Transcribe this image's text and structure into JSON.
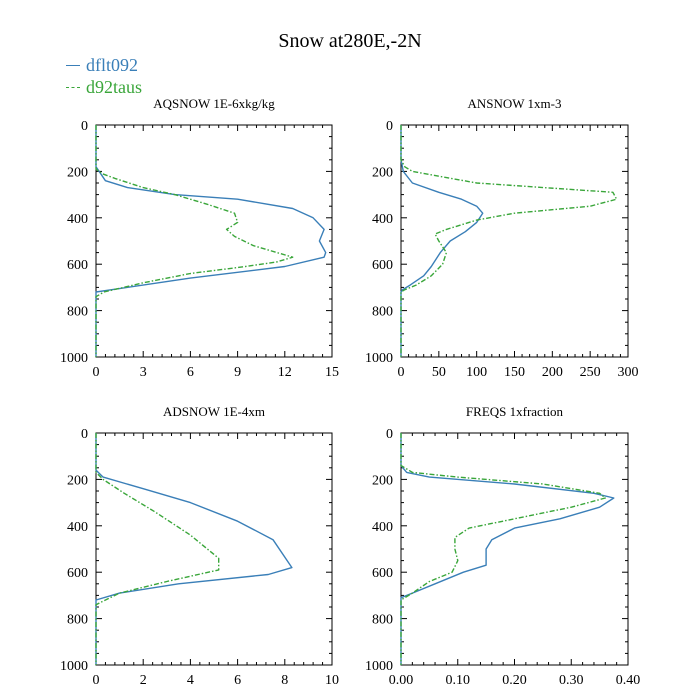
{
  "title": "Snow at280E,-2N",
  "legend": [
    {
      "label": "dflt092",
      "color": "#3a7fb8",
      "style": "solid"
    },
    {
      "label": "d92taus",
      "color": "#3aa63a",
      "style": "dashed"
    }
  ],
  "chart_data": [
    {
      "type": "line",
      "title": "AQSNOW  1E-6xkg/kg",
      "xlim": [
        0,
        15
      ],
      "xticks": [
        0,
        3,
        6,
        9,
        12,
        15
      ],
      "xtick_labels": [
        "0",
        "3",
        "6",
        "9",
        "12",
        "15"
      ],
      "ylim": [
        1000,
        0
      ],
      "yticks": [
        0,
        200,
        400,
        600,
        800,
        1000
      ],
      "ytick_labels": [
        "0",
        "200",
        "400",
        "600",
        "800",
        "1000"
      ],
      "series": [
        {
          "name": "dflt092",
          "x": [
            0,
            0,
            0.3,
            0.6,
            2,
            5,
            9,
            12.5,
            13.8,
            14.5,
            14.2,
            14.6,
            14.5,
            12,
            6,
            1,
            0,
            0
          ],
          "y": [
            0,
            180,
            210,
            240,
            270,
            300,
            320,
            360,
            400,
            450,
            500,
            550,
            570,
            610,
            660,
            710,
            720,
            1000
          ]
        },
        {
          "name": "d92taus",
          "x": [
            0,
            0,
            0.4,
            1.2,
            3,
            5,
            7,
            8.8,
            9,
            8.3,
            8.8,
            10,
            12.5,
            11.5,
            9.5,
            6,
            3,
            0.5,
            0,
            0
          ],
          "y": [
            0,
            190,
            210,
            230,
            270,
            300,
            340,
            380,
            420,
            450,
            480,
            520,
            570,
            590,
            610,
            640,
            680,
            720,
            740,
            1000
          ]
        }
      ]
    },
    {
      "type": "line",
      "title": "ANSNOW  1xm-3",
      "xlim": [
        0,
        300
      ],
      "xticks": [
        0,
        50,
        100,
        150,
        200,
        250,
        300
      ],
      "xtick_labels": [
        "0",
        "50",
        "100",
        "150",
        "200",
        "250",
        "300"
      ],
      "ylim": [
        1000,
        0
      ],
      "yticks": [
        0,
        200,
        400,
        600,
        800,
        1000
      ],
      "ytick_labels": [
        "0",
        "200",
        "400",
        "600",
        "800",
        "1000"
      ],
      "series": [
        {
          "name": "dflt092",
          "x": [
            0,
            0,
            3,
            15,
            50,
            80,
            100,
            108,
            100,
            85,
            65,
            52,
            40,
            30,
            12,
            2,
            0,
            0
          ],
          "y": [
            0,
            150,
            200,
            250,
            290,
            320,
            350,
            380,
            420,
            460,
            500,
            550,
            610,
            650,
            690,
            710,
            720,
            1000
          ]
        },
        {
          "name": "d92taus",
          "x": [
            0,
            0,
            5,
            15,
            100,
            280,
            285,
            250,
            150,
            100,
            60,
            45,
            50,
            60,
            55,
            40,
            20,
            5,
            0,
            0
          ],
          "y": [
            0,
            150,
            180,
            200,
            250,
            290,
            320,
            350,
            380,
            410,
            450,
            470,
            500,
            550,
            600,
            650,
            690,
            710,
            720,
            1000
          ]
        }
      ]
    },
    {
      "type": "line",
      "title": "ADSNOW  1E-4xm",
      "xlim": [
        0,
        10
      ],
      "xticks": [
        0,
        2,
        4,
        6,
        8,
        10
      ],
      "xtick_labels": [
        "0",
        "2",
        "4",
        "6",
        "8",
        "10"
      ],
      "ylim": [
        1000,
        0
      ],
      "yticks": [
        0,
        200,
        400,
        600,
        800,
        1000
      ],
      "ytick_labels": [
        "0",
        "200",
        "400",
        "600",
        "800",
        "1000"
      ],
      "series": [
        {
          "name": "dflt092",
          "x": [
            0,
            0,
            0.3,
            2,
            4,
            6,
            7.5,
            8.3,
            7.3,
            3.5,
            1,
            0,
            0
          ],
          "y": [
            0,
            160,
            190,
            240,
            300,
            380,
            460,
            580,
            610,
            650,
            690,
            720,
            1000
          ]
        },
        {
          "name": "d92taus",
          "x": [
            0,
            0,
            0.3,
            1.2,
            2.5,
            4,
            5.2,
            5.2,
            3,
            1,
            0,
            0
          ],
          "y": [
            0,
            170,
            200,
            260,
            340,
            440,
            540,
            590,
            640,
            690,
            740,
            1000
          ]
        }
      ]
    },
    {
      "type": "line",
      "title": "FREQS  1xfraction",
      "xlim": [
        0,
        0.4
      ],
      "xticks": [
        0,
        0.1,
        0.2,
        0.3,
        0.4
      ],
      "xtick_labels": [
        "0.00",
        "0.10",
        "0.20",
        "0.30",
        "0.40"
      ],
      "ylim": [
        1000,
        0
      ],
      "yticks": [
        0,
        200,
        400,
        600,
        800,
        1000
      ],
      "ytick_labels": [
        "0",
        "200",
        "400",
        "600",
        "800",
        "1000"
      ],
      "series": [
        {
          "name": "dflt092",
          "x": [
            0,
            0,
            0.01,
            0.05,
            0.2,
            0.34,
            0.375,
            0.35,
            0.28,
            0.2,
            0.16,
            0.15,
            0.15,
            0.11,
            0.06,
            0.02,
            0,
            0
          ],
          "y": [
            0,
            140,
            170,
            190,
            220,
            260,
            280,
            320,
            370,
            410,
            460,
            500,
            570,
            600,
            650,
            690,
            710,
            1000
          ]
        },
        {
          "name": "d92taus",
          "x": [
            0,
            0,
            0.02,
            0.1,
            0.25,
            0.35,
            0.36,
            0.3,
            0.2,
            0.12,
            0.095,
            0.095,
            0.1,
            0.09,
            0.05,
            0.02,
            0,
            0
          ],
          "y": [
            0,
            140,
            170,
            190,
            220,
            260,
            280,
            320,
            370,
            410,
            450,
            500,
            550,
            600,
            640,
            690,
            720,
            1000
          ]
        }
      ]
    }
  ]
}
